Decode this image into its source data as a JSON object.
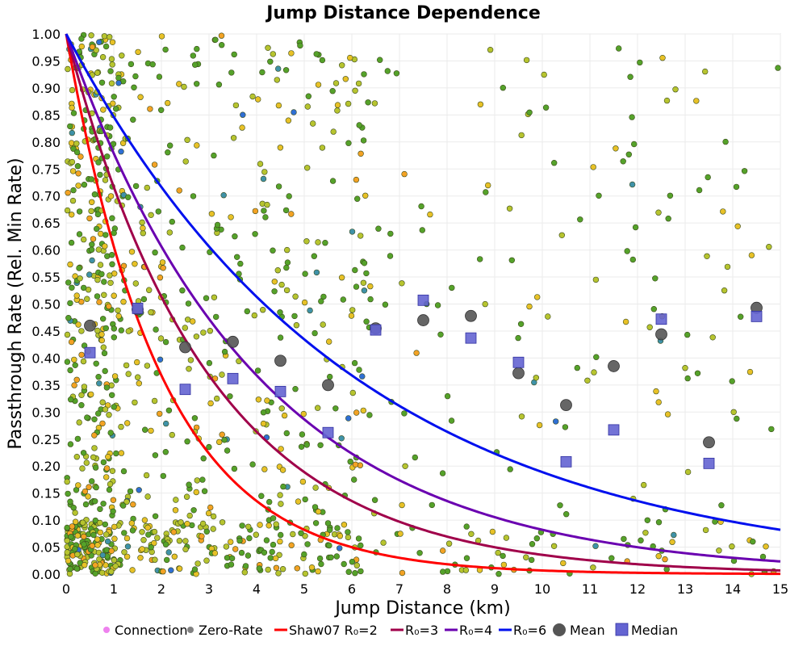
{
  "chart_data": {
    "type": "scatter",
    "title": "Jump Distance Dependence",
    "xlabel": "Jump Distance (km)",
    "ylabel": "Passthrough Rate (Rel. Min Rate)",
    "xlim": [
      0,
      15
    ],
    "ylim": [
      0,
      1
    ],
    "x_ticks": [
      "0",
      "1",
      "2",
      "3",
      "4",
      "5",
      "6",
      "7",
      "8",
      "9",
      "10",
      "11",
      "12",
      "13",
      "14",
      "15"
    ],
    "y_ticks": [
      "0.00",
      "0.05",
      "0.10",
      "0.15",
      "0.20",
      "0.25",
      "0.30",
      "0.35",
      "0.40",
      "0.45",
      "0.50",
      "0.55",
      "0.60",
      "0.65",
      "0.70",
      "0.75",
      "0.80",
      "0.85",
      "0.90",
      "0.95",
      "1.00"
    ],
    "grid": true,
    "legend_position": "bottom",
    "legend": [
      {
        "label": "Connection",
        "kind": "dot",
        "color": "#ee82ee"
      },
      {
        "label": "Zero-Rate",
        "kind": "dot",
        "color": "#808080"
      },
      {
        "label": "Shaw07 R₀=2",
        "kind": "line",
        "color": "#ff0000"
      },
      {
        "label": "R₀=3",
        "kind": "line",
        "color": "#a0004a"
      },
      {
        "label": "R₀=4",
        "kind": "line",
        "color": "#6a00b0"
      },
      {
        "label": "R₀=6",
        "kind": "line",
        "color": "#0010ee"
      },
      {
        "label": "Mean",
        "kind": "circle",
        "color": "#555555"
      },
      {
        "label": "Median",
        "kind": "square",
        "color": "#6464d2"
      }
    ],
    "curves": [
      {
        "name": "Shaw07 R₀=2",
        "formula": "exp(-x/R0)",
        "R0": 2,
        "color": "#ff0000"
      },
      {
        "name": "R₀=3",
        "formula": "exp(-x/R0)",
        "R0": 3,
        "color": "#a0004a"
      },
      {
        "name": "R₀=4",
        "formula": "exp(-x/R0)",
        "R0": 4,
        "color": "#6a00b0"
      },
      {
        "name": "R₀=6",
        "formula": "exp(-x/R0)",
        "R0": 6,
        "color": "#0010ee"
      }
    ],
    "mean": {
      "x": [
        0.5,
        1.5,
        2.5,
        3.5,
        4.5,
        5.5,
        6.5,
        7.5,
        8.5,
        9.5,
        10.5,
        11.5,
        12.5,
        13.5,
        14.5
      ],
      "y": [
        0.46,
        0.49,
        0.42,
        0.43,
        0.395,
        0.35,
        0.455,
        0.47,
        0.478,
        0.372,
        0.313,
        0.385,
        0.444,
        0.244,
        0.493
      ]
    },
    "median": {
      "x": [
        0.5,
        1.5,
        2.5,
        3.5,
        4.5,
        5.5,
        6.5,
        7.5,
        8.5,
        9.5,
        10.5,
        11.5,
        12.5,
        13.5,
        14.5
      ],
      "y": [
        0.41,
        0.492,
        0.342,
        0.362,
        0.338,
        0.262,
        0.452,
        0.507,
        0.437,
        0.392,
        0.208,
        0.267,
        0.472,
        0.205,
        0.477
      ]
    },
    "scatter_points": {
      "count": 1200,
      "colors": [
        "#55a22a",
        "#b7c42f",
        "#e8c127",
        "#f3a224",
        "#3f92a8",
        "#2f6fd4"
      ],
      "x": [
        0.06,
        0.12,
        0.18,
        0.25,
        0.31,
        0.38,
        0.44,
        0.52,
        0.6,
        0.68,
        0.77,
        0.86,
        0.95,
        1.05,
        1.17,
        1.3,
        1.42,
        1.55,
        1.7,
        1.84,
        2.0,
        2.15,
        2.32,
        2.5,
        2.68,
        2.86,
        3.05,
        3.25,
        3.45,
        3.67,
        3.9,
        4.12,
        4.35,
        4.6,
        4.85,
        5.1,
        5.35,
        5.62,
        5.9,
        6.2,
        6.5,
        6.8,
        7.1,
        7.45,
        7.8,
        8.15,
        8.5,
        8.9,
        9.3,
        9.7,
        10.1,
        10.6,
        11.0,
        11.5,
        12.0,
        12.5,
        13.0,
        13.5,
        14.0,
        14.5,
        14.9
      ],
      "y_range": [
        0,
        1
      ]
    }
  }
}
